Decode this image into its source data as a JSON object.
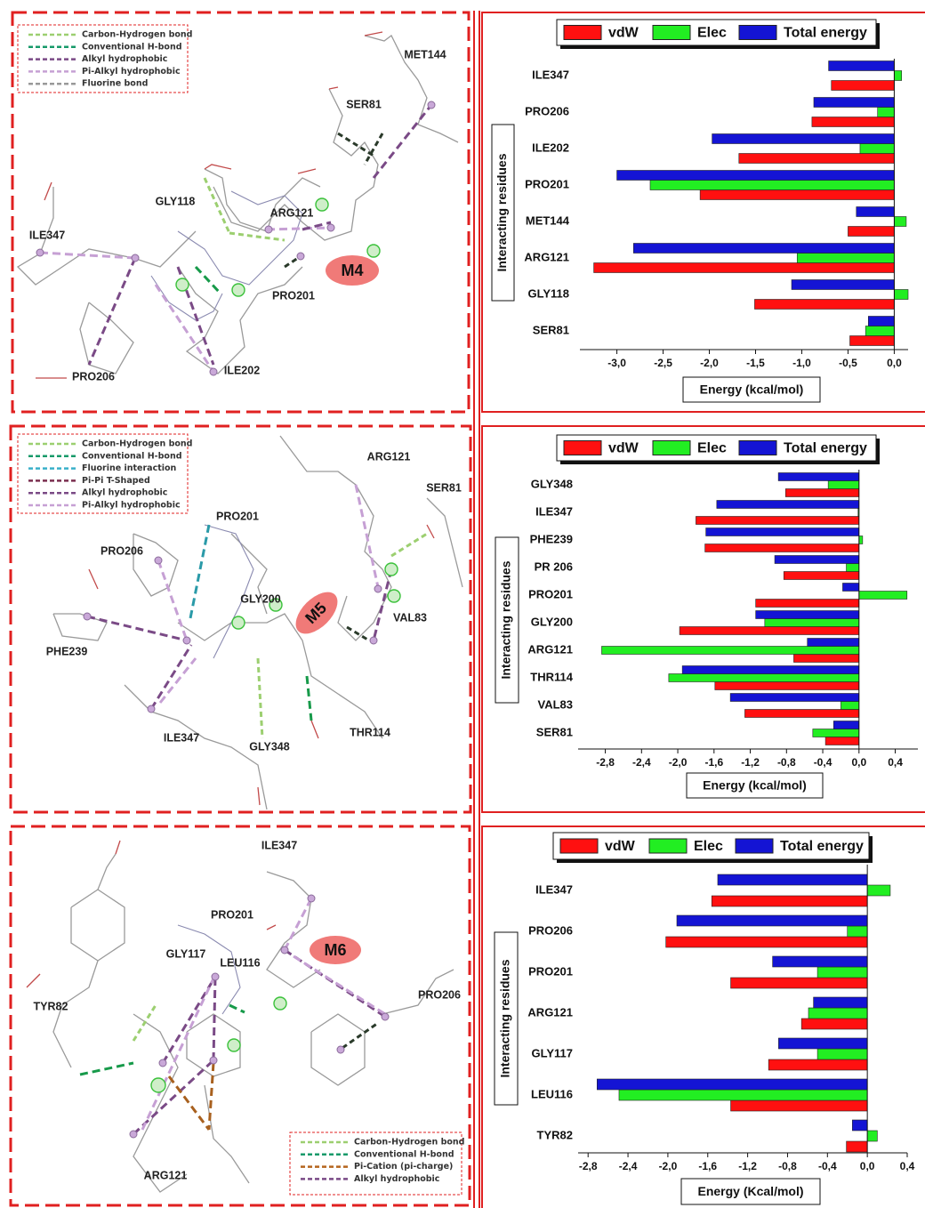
{
  "chart_data": [
    {
      "type": "barh",
      "categories": [
        "ILE347",
        "PRO206",
        "ILE202",
        "PRO201",
        "MET144",
        "ARG121",
        "GLY118",
        "SER81"
      ],
      "series": [
        {
          "name": "vdW",
          "color": "#ff1010",
          "values": [
            -0.68,
            -0.89,
            -1.68,
            -2.1,
            -0.5,
            -3.25,
            -1.51,
            -0.48
          ]
        },
        {
          "name": "Elec",
          "color": "#22ee22",
          "values": [
            0.08,
            -0.18,
            -0.37,
            -2.64,
            0.13,
            -1.05,
            0.15,
            -0.31
          ]
        },
        {
          "name": "Total energy",
          "color": "#1414d4",
          "values": [
            -0.71,
            -0.87,
            -1.97,
            -3.0,
            -0.41,
            -2.82,
            -1.11,
            -0.28
          ]
        }
      ],
      "xlim": [
        -3.4,
        0.15
      ],
      "xticks": [
        {
          "value": -3.0,
          "label": "-3,0"
        },
        {
          "value": -2.5,
          "label": "-2,5"
        },
        {
          "value": -2.0,
          "label": "-2,0"
        },
        {
          "value": -1.5,
          "label": "-1,5"
        },
        {
          "value": -1.0,
          "label": "-1,0"
        },
        {
          "value": -0.5,
          "label": "-0,5"
        },
        {
          "value": 0,
          "label": "0,0"
        }
      ],
      "xlabel": "Energy (kcal/mol)",
      "ylabel": "Interacting residues"
    },
    {
      "type": "barh",
      "categories": [
        "GLY348",
        "ILE347",
        "PHE239",
        "PR 206",
        "PRO201",
        "GLY200",
        "ARG121",
        "THR114",
        "VAL83",
        "SER81"
      ],
      "series": [
        {
          "name": "vdW",
          "color": "#ff1010",
          "values": [
            -0.81,
            -1.8,
            -1.7,
            -0.83,
            -1.14,
            -1.98,
            -0.72,
            -1.59,
            -1.26,
            -0.37
          ]
        },
        {
          "name": "Elec",
          "color": "#22ee22",
          "values": [
            -0.34,
            -0.01,
            0.04,
            -0.14,
            0.53,
            -1.04,
            -2.84,
            -2.1,
            -0.2,
            -0.51
          ]
        },
        {
          "name": "Total energy",
          "color": "#1414d4",
          "values": [
            -0.89,
            -1.57,
            -1.69,
            -0.93,
            -0.18,
            -1.14,
            -0.57,
            -1.95,
            -1.42,
            -0.28
          ]
        }
      ],
      "xlim": [
        -3.1,
        0.65
      ],
      "xticks": [
        {
          "value": -2.8,
          "label": "-2,8"
        },
        {
          "value": -2.4,
          "label": "-2,4"
        },
        {
          "value": -2.0,
          "label": "-2,0"
        },
        {
          "value": -1.6,
          "label": "-1,6"
        },
        {
          "value": -1.2,
          "label": "-1,2"
        },
        {
          "value": -0.8,
          "label": "-0,8"
        },
        {
          "value": -0.4,
          "label": "-0,4"
        },
        {
          "value": 0,
          "label": "0,0"
        },
        {
          "value": 0.4,
          "label": "0,4"
        }
      ],
      "xlabel": "Energy (kcal/mol)",
      "ylabel": "Interacting residues"
    },
    {
      "type": "barh",
      "categories": [
        "ILE347",
        "PRO206",
        "PRO201",
        "ARG121",
        "GLY117",
        "LEU116",
        "TYR82"
      ],
      "series": [
        {
          "name": "vdW",
          "color": "#ff1010",
          "values": [
            -1.56,
            -2.02,
            -1.37,
            -0.66,
            -0.99,
            -1.37,
            -0.21
          ]
        },
        {
          "name": "Elec",
          "color": "#22ee22",
          "values": [
            0.23,
            -0.2,
            -0.5,
            -0.59,
            -0.5,
            -2.49,
            0.1
          ]
        },
        {
          "name": "Total energy",
          "color": "#1414d4",
          "values": [
            -1.5,
            -1.91,
            -0.95,
            -0.54,
            -0.89,
            -2.71,
            -0.15
          ]
        }
      ],
      "xlim": [
        -2.9,
        0.4
      ],
      "xticks": [
        {
          "value": -2.8,
          "label": "-2,8"
        },
        {
          "value": -2.4,
          "label": "-2,4"
        },
        {
          "value": -2.0,
          "label": "-2,0"
        },
        {
          "value": -1.6,
          "label": "-1,6"
        },
        {
          "value": -1.2,
          "label": "-1,2"
        },
        {
          "value": -0.8,
          "label": "-0,8"
        },
        {
          "value": -0.4,
          "label": "-0,4"
        },
        {
          "value": 0,
          "label": "0,0"
        },
        {
          "value": 0.4,
          "label": "0,4"
        }
      ],
      "xlabel": "Energy (Kcal/mol)",
      "ylabel": "Interacting residues"
    }
  ],
  "diagrams": [
    {
      "molecule": "M4",
      "legend": [
        {
          "label": "Carbon-Hydrogen bond",
          "color": "#9ccf70"
        },
        {
          "label": "Conventional H-bond",
          "color": "#179a6a"
        },
        {
          "label": "Alkyl hydrophobic",
          "color": "#7a4a86"
        },
        {
          "label": "Pi-Alkyl hydrophobic",
          "color": "#c6a0d4"
        },
        {
          "label": "Fluorine bond",
          "color": "#999999"
        }
      ],
      "residues": [
        "MET144",
        "SER81",
        "GLY118",
        "ARG121",
        "ILE347",
        "PRO201",
        "ILE202",
        "PRO206"
      ]
    },
    {
      "molecule": "M5",
      "legend": [
        {
          "label": "Carbon-Hydrogen bond",
          "color": "#9ccf70"
        },
        {
          "label": "Conventional H-bond",
          "color": "#179a6a"
        },
        {
          "label": "Fluorine interaction",
          "color": "#39b0c9"
        },
        {
          "label": "Pi-Pi T-Shaped",
          "color": "#7a2e4f"
        },
        {
          "label": "Alkyl hydrophobic",
          "color": "#7a4a86"
        },
        {
          "label": "Pi-Alkyl hydrophobic",
          "color": "#c6a0d4"
        }
      ],
      "residues": [
        "ARG121",
        "SER81",
        "PRO201",
        "PRO206",
        "GLY200",
        "VAL83",
        "PHE239",
        "ILE347",
        "GLY348",
        "THR114"
      ]
    },
    {
      "molecule": "M6",
      "legend": [
        {
          "label": "Carbon-Hydrogen bond",
          "color": "#9ccf70"
        },
        {
          "label": "Conventional H-bond",
          "color": "#179a6a"
        },
        {
          "label": "Pi-Cation (pi-charge)",
          "color": "#b5651d"
        },
        {
          "label": "Alkyl hydrophobic",
          "color": "#7a4a86"
        }
      ],
      "residues": [
        "ILE347",
        "PRO201",
        "GLY117",
        "LEU116",
        "TYR82",
        "PRO206",
        "ARG121"
      ]
    }
  ]
}
